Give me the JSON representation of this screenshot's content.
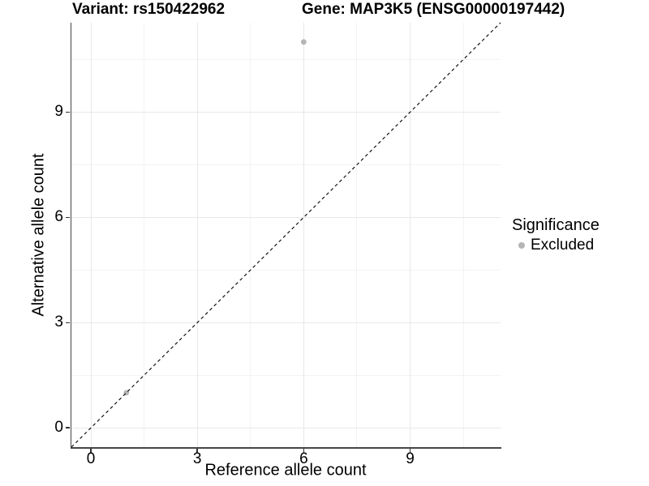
{
  "header": {
    "variant_title": "Variant: rs150422962",
    "gene_title": "Gene: MAP3K5 (ENSG00000197442)"
  },
  "legend": {
    "title": "Significance",
    "items": [
      {
        "label": "Excluded",
        "color": "#b5b5b5",
        "marker": "circle"
      }
    ]
  },
  "chart_data": {
    "type": "scatter",
    "title": "Variant: rs150422962 | Gene: MAP3K5 (ENSG00000197442)",
    "xlabel": "Reference allele count",
    "ylabel": "Alternative allele count",
    "xlim": [
      -0.55,
      11.55
    ],
    "ylim": [
      -0.55,
      11.55
    ],
    "x_ticks": [
      0,
      3,
      6,
      9
    ],
    "y_ticks": [
      0,
      3,
      6,
      9
    ],
    "x_minor_ticks": [
      1.5,
      4.5,
      7.5,
      10.5
    ],
    "y_minor_ticks": [
      1.5,
      4.5,
      7.5,
      10.5
    ],
    "grid": true,
    "legend_position": "right",
    "series": [
      {
        "name": "Excluded",
        "color": "#b5b5b5",
        "point_radius": 3.4,
        "points": [
          [
            6,
            11
          ],
          [
            1,
            1
          ]
        ]
      }
    ],
    "reference_line": {
      "kind": "identity",
      "slope": 1,
      "intercept": 0,
      "style": "dashed",
      "color": "#000000"
    }
  },
  "colors": {
    "background": "#ffffff",
    "grid_major": "#e8e8e8",
    "grid_minor": "#f3f3f3",
    "axis_line": "#454545",
    "tick": "#333333",
    "text": "#000000"
  }
}
